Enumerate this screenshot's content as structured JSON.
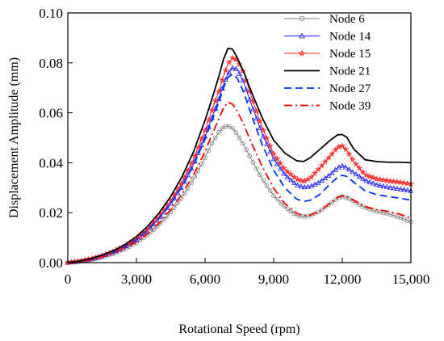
{
  "chart_data": {
    "type": "line",
    "xlabel": "Rotational Speed (rpm)",
    "ylabel": "Displacement Amplitude (mm)",
    "xlim": [
      0,
      15000
    ],
    "ylim": [
      0,
      0.1
    ],
    "xticks": [
      0,
      3000,
      6000,
      9000,
      12000,
      15000
    ],
    "xtick_labels": [
      "0",
      "3,000",
      "6,000",
      "9,000",
      "12,000",
      "15,000"
    ],
    "yticks": [
      0,
      0.02,
      0.04,
      0.06,
      0.08,
      0.1
    ],
    "ytick_labels": [
      "0.00",
      "0.02",
      "0.04",
      "0.06",
      "0.08",
      "0.10"
    ],
    "grid": false,
    "legend": "top-right",
    "x": [
      0,
      500,
      1000,
      1500,
      2000,
      2500,
      3000,
      3500,
      4000,
      4500,
      5000,
      5500,
      6000,
      6300,
      6600,
      6800,
      7000,
      7200,
      7400,
      7700,
      8000,
      8500,
      9000,
      9500,
      10000,
      10300,
      10600,
      11000,
      11500,
      11800,
      12000,
      12200,
      12500,
      13000,
      13500,
      14000,
      14500,
      15000
    ],
    "series": [
      {
        "name": "Node 6",
        "color": "#808080",
        "style": "line-circle-markers",
        "values": [
          0.0,
          0.0005,
          0.0012,
          0.0022,
          0.0036,
          0.0055,
          0.008,
          0.0112,
          0.0152,
          0.0202,
          0.0262,
          0.0335,
          0.042,
          0.0478,
          0.0522,
          0.0542,
          0.0548,
          0.0538,
          0.0515,
          0.047,
          0.0418,
          0.0335,
          0.0268,
          0.0222,
          0.019,
          0.0184,
          0.0188,
          0.0205,
          0.0238,
          0.0258,
          0.0265,
          0.026,
          0.0245,
          0.022,
          0.0205,
          0.0195,
          0.0182,
          0.0162
        ]
      },
      {
        "name": "Node 14",
        "color": "#1f1fff",
        "style": "line-triangle-markers",
        "values": [
          0.0,
          0.0006,
          0.0014,
          0.0026,
          0.0042,
          0.0063,
          0.0092,
          0.013,
          0.0178,
          0.0237,
          0.0307,
          0.0395,
          0.0505,
          0.058,
          0.0655,
          0.0712,
          0.0755,
          0.078,
          0.0775,
          0.072,
          0.064,
          0.0515,
          0.0415,
          0.035,
          0.0312,
          0.0302,
          0.0305,
          0.0322,
          0.0355,
          0.038,
          0.0388,
          0.038,
          0.036,
          0.033,
          0.0312,
          0.0302,
          0.0295,
          0.0288
        ]
      },
      {
        "name": "Node 15",
        "color": "#ff2020",
        "style": "line-star-markers",
        "values": [
          0.0,
          0.0006,
          0.0015,
          0.0028,
          0.0045,
          0.0067,
          0.0097,
          0.0136,
          0.0186,
          0.0248,
          0.0322,
          0.0415,
          0.053,
          0.061,
          0.0685,
          0.0745,
          0.0795,
          0.082,
          0.0812,
          0.0758,
          0.0672,
          0.054,
          0.0435,
          0.0372,
          0.0335,
          0.0325,
          0.0338,
          0.0378,
          0.043,
          0.0462,
          0.0468,
          0.045,
          0.0405,
          0.0352,
          0.0335,
          0.0328,
          0.0322,
          0.0315
        ]
      },
      {
        "name": "Node 21",
        "color": "#000000",
        "style": "solid",
        "values": [
          0.0,
          0.0006,
          0.0016,
          0.003,
          0.0048,
          0.0072,
          0.0104,
          0.0146,
          0.02,
          0.0265,
          0.0345,
          0.0445,
          0.057,
          0.0655,
          0.0745,
          0.0812,
          0.0858,
          0.0855,
          0.0822,
          0.0762,
          0.069,
          0.058,
          0.049,
          0.0438,
          0.0408,
          0.0405,
          0.042,
          0.0452,
          0.0492,
          0.0512,
          0.0513,
          0.0502,
          0.0455,
          0.0412,
          0.0405,
          0.0402,
          0.0402,
          0.04
        ]
      },
      {
        "name": "Node 27",
        "color": "#0033ff",
        "style": "dashed",
        "values": [
          0.0,
          0.0006,
          0.0014,
          0.0026,
          0.0042,
          0.0063,
          0.0092,
          0.013,
          0.0178,
          0.0236,
          0.0305,
          0.039,
          0.0495,
          0.0568,
          0.0642,
          0.0698,
          0.0742,
          0.0755,
          0.074,
          0.068,
          0.0598,
          0.0472,
          0.037,
          0.0298,
          0.0255,
          0.0245,
          0.025,
          0.0272,
          0.0318,
          0.0342,
          0.035,
          0.0345,
          0.0322,
          0.0288,
          0.0272,
          0.0265,
          0.0258,
          0.025
        ]
      },
      {
        "name": "Node 39",
        "color": "#ff0000",
        "style": "dash-dot",
        "values": [
          0.0,
          0.0005,
          0.0012,
          0.0023,
          0.0038,
          0.0058,
          0.0084,
          0.0118,
          0.016,
          0.0212,
          0.0276,
          0.0352,
          0.0445,
          0.0512,
          0.0575,
          0.0618,
          0.0642,
          0.0635,
          0.0608,
          0.0552,
          0.0485,
          0.0385,
          0.0298,
          0.0235,
          0.0198,
          0.0188,
          0.019,
          0.0205,
          0.024,
          0.0262,
          0.0268,
          0.0265,
          0.025,
          0.0225,
          0.0212,
          0.0205,
          0.0195,
          0.0178
        ]
      }
    ]
  }
}
